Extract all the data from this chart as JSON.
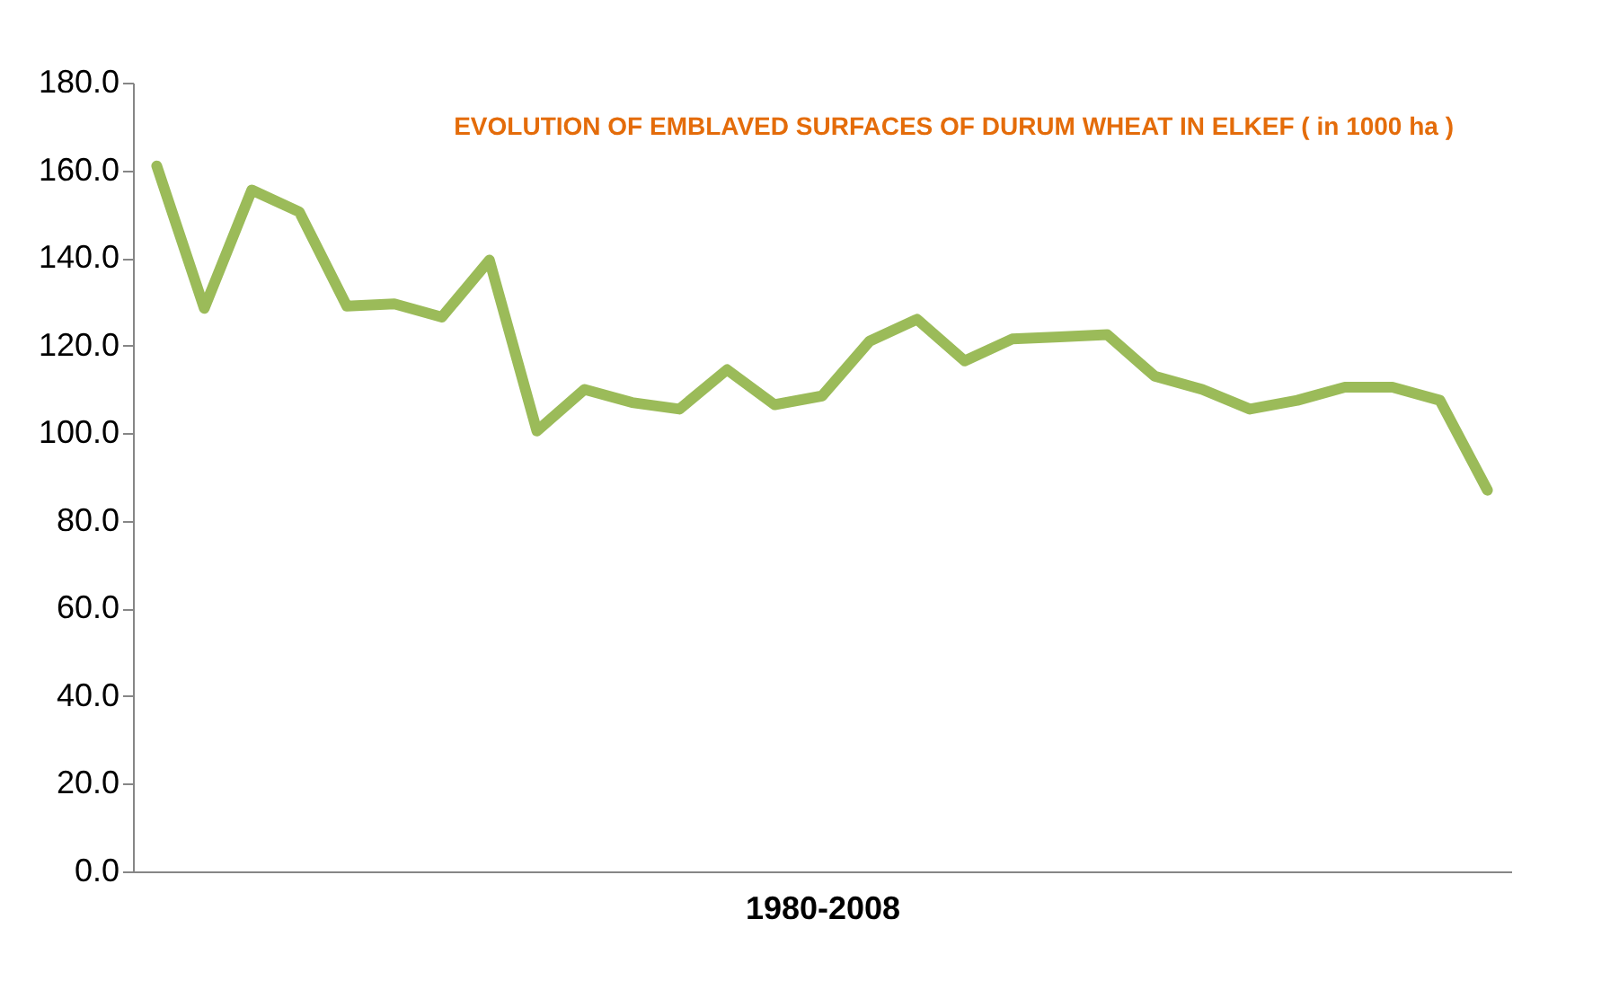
{
  "chart_data": {
    "type": "line",
    "title": "EVOLUTION OF EMBLAVED SURFACES OF DURUM WHEAT IN ELKEF ( in 1000 ha )",
    "xlabel": "1980-2008",
    "categories": [
      null,
      null,
      null,
      null,
      null,
      null,
      null,
      null,
      null,
      null,
      null,
      null,
      null,
      null,
      null,
      null,
      null,
      null,
      null,
      null,
      null,
      null,
      null,
      null,
      null,
      null,
      null,
      null,
      null
    ],
    "series": [
      {
        "color": "#9bbb59",
        "values": [
          161,
          128.5,
          155.5,
          150.5,
          129,
          129.5,
          126.5,
          139.5,
          100.5,
          110,
          107,
          105.5,
          114.5,
          106.5,
          108.5,
          121,
          126,
          116.5,
          121.5,
          122,
          122.5,
          113,
          110,
          105.5,
          107.5,
          110.5,
          110.5,
          107.5,
          87
        ]
      }
    ],
    "ylim": [
      0,
      180
    ],
    "yticks": [
      {
        "value": 0,
        "label": "0.0"
      },
      {
        "value": 20,
        "label": "20.0"
      },
      {
        "value": 40,
        "label": "40.0"
      },
      {
        "value": 60,
        "label": "60.0"
      },
      {
        "value": 80,
        "label": "80.0"
      },
      {
        "value": 100,
        "label": "100.0"
      },
      {
        "value": 120,
        "label": "120.0"
      },
      {
        "value": 140,
        "label": "140.0"
      },
      {
        "value": 160,
        "label": "160.0"
      },
      {
        "value": 180,
        "label": "180.0"
      }
    ],
    "grid": false,
    "legend": false,
    "marker": "none",
    "line_style": "solid"
  }
}
